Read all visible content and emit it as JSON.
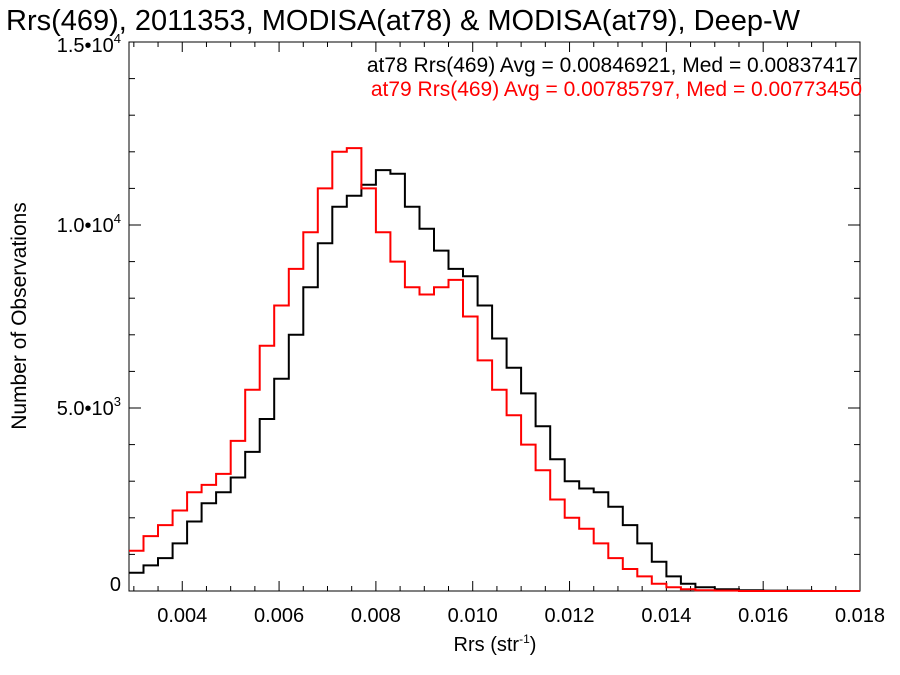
{
  "chart_data": {
    "type": "line",
    "title": "Rrs(469), 2011353, MODISA(at78) & MODISA(at79), Deep-W",
    "xlabel": "Rrs (str",
    "xlabel_sup": "-1",
    "xlabel_close": ")",
    "ylabel": "Number of Observations",
    "xlim": [
      0.0029,
      0.018
    ],
    "ylim": [
      0,
      15000
    ],
    "x_ticks": [
      {
        "value": 0.004,
        "label": "0.004"
      },
      {
        "value": 0.006,
        "label": "0.006"
      },
      {
        "value": 0.008,
        "label": "0.008"
      },
      {
        "value": 0.01,
        "label": "0.010"
      },
      {
        "value": 0.012,
        "label": "0.012"
      },
      {
        "value": 0.014,
        "label": "0.014"
      },
      {
        "value": 0.016,
        "label": "0.016"
      },
      {
        "value": 0.018,
        "label": "0.018"
      }
    ],
    "y_ticks": [
      {
        "value": 0,
        "label": "0",
        "sup": ""
      },
      {
        "value": 5000,
        "label": "5.0•10",
        "sup": "3"
      },
      {
        "value": 10000,
        "label": "1.0•10",
        "sup": "4"
      },
      {
        "value": 15000,
        "label": "1.5•10",
        "sup": "4"
      }
    ],
    "annotations": [
      {
        "text": "at78 Rrs(469) Avg = 0.00846921, Med = 0.00837417",
        "color": "#000000"
      },
      {
        "text": "at79 Rrs(469) Avg = 0.00785797, Med = 0.00773450",
        "color": "#ff0000"
      }
    ],
    "series": [
      {
        "color": "#000000",
        "x": [
          0.0029,
          0.0032,
          0.0035,
          0.0038,
          0.0041,
          0.0044,
          0.0047,
          0.005,
          0.0053,
          0.0056,
          0.0059,
          0.0062,
          0.0065,
          0.0068,
          0.0071,
          0.0074,
          0.0077,
          0.008,
          0.0083,
          0.0086,
          0.0089,
          0.0092,
          0.0095,
          0.0098,
          0.0101,
          0.0104,
          0.0107,
          0.011,
          0.0113,
          0.0116,
          0.0119,
          0.0122,
          0.0125,
          0.0128,
          0.0131,
          0.0134,
          0.0137,
          0.014,
          0.0143,
          0.0146,
          0.015,
          0.0155,
          0.016,
          0.017,
          0.018
        ],
        "y": [
          500,
          700,
          900,
          1300,
          1900,
          2400,
          2700,
          3100,
          3800,
          4700,
          5800,
          7000,
          8300,
          9500,
          10500,
          10800,
          11100,
          11500,
          11400,
          10500,
          9900,
          9300,
          8800,
          8600,
          7800,
          6900,
          6100,
          5400,
          4500,
          3600,
          3000,
          2800,
          2700,
          2300,
          1800,
          1300,
          800,
          400,
          200,
          100,
          50,
          20,
          10,
          0,
          0
        ]
      },
      {
        "color": "#ff0000",
        "x": [
          0.0029,
          0.0032,
          0.0035,
          0.0038,
          0.0041,
          0.0044,
          0.0047,
          0.005,
          0.0053,
          0.0056,
          0.0059,
          0.0062,
          0.0065,
          0.0068,
          0.0071,
          0.0074,
          0.0077,
          0.008,
          0.0083,
          0.0086,
          0.0089,
          0.0092,
          0.0095,
          0.0098,
          0.0101,
          0.0104,
          0.0107,
          0.011,
          0.0113,
          0.0116,
          0.0119,
          0.0122,
          0.0125,
          0.0128,
          0.0131,
          0.0134,
          0.0137,
          0.014,
          0.0143,
          0.0146,
          0.015,
          0.0155,
          0.016,
          0.017,
          0.018
        ],
        "y": [
          1100,
          1500,
          1800,
          2200,
          2700,
          2900,
          3200,
          4100,
          5500,
          6700,
          7800,
          8800,
          9800,
          11000,
          12000,
          12100,
          11000,
          9800,
          9000,
          8300,
          8100,
          8300,
          8500,
          7500,
          6300,
          5500,
          4800,
          4000,
          3300,
          2500,
          2000,
          1700,
          1300,
          900,
          600,
          400,
          200,
          100,
          50,
          20,
          10,
          0,
          0,
          0,
          0
        ]
      }
    ]
  }
}
